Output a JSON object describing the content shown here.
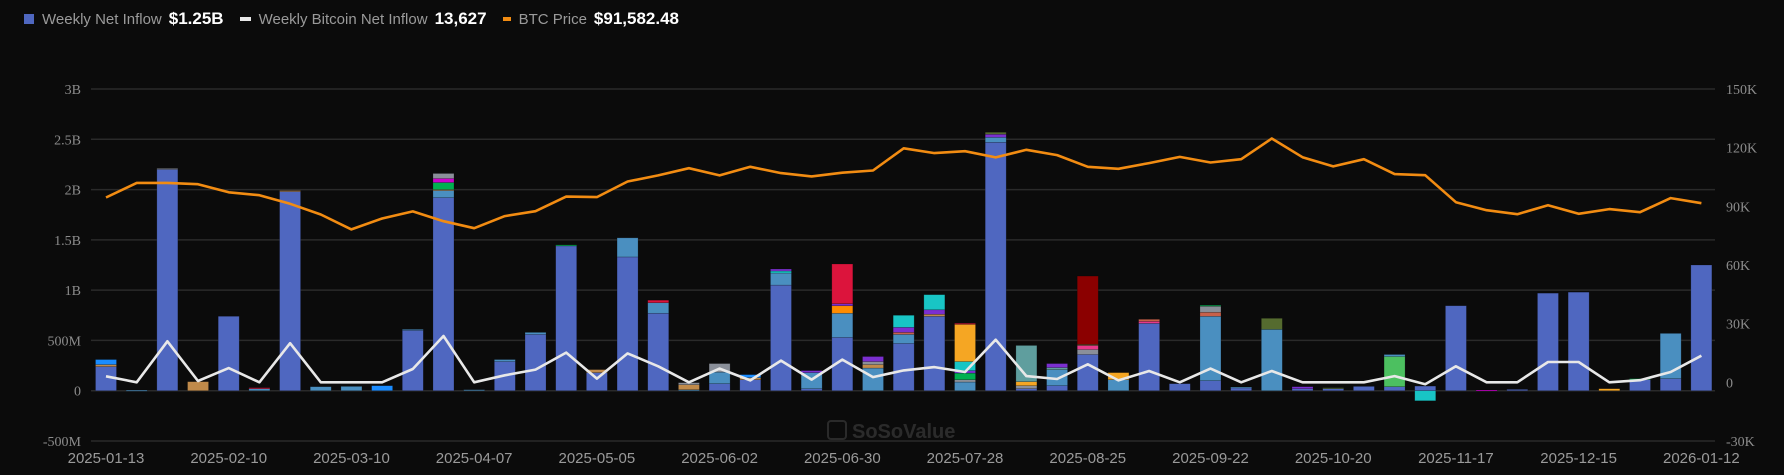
{
  "legend": {
    "net_inflow_label": "Weekly Net Inflow",
    "net_inflow_value": "$1.25B",
    "btc_inflow_label": "Weekly Bitcoin Net Inflow",
    "btc_inflow_value": "13,627",
    "price_label": "BTC Price",
    "price_value": "$91,582.48"
  },
  "watermark": "SoSoValue",
  "colors": {
    "net_inflow": "#4f67c0",
    "btc_inflow": "#e8e8e8",
    "price": "#f28c12",
    "background": "#0b0b0b",
    "grid": "#2a2a2a"
  },
  "chart_data": {
    "type": "bar",
    "grid": true,
    "legend_position": "top-left",
    "left_axis": {
      "ticks": [
        "3B",
        "2.5B",
        "2B",
        "1.5B",
        "1B",
        "500M",
        "0",
        "-500M"
      ],
      "range": [
        -0.5,
        3
      ],
      "unit": "B USD"
    },
    "right_axis": {
      "ticks": [
        "150K",
        "120K",
        "90K",
        "60K",
        "30K",
        "0",
        "-30K"
      ],
      "range": [
        -30000,
        150000
      ]
    },
    "x_tick_labels": [
      "2025-01-13",
      "2025-02-10",
      "2025-03-10",
      "2025-04-07",
      "2025-05-05",
      "2025-06-02",
      "2025-06-30",
      "2025-07-28",
      "2025-08-25",
      "2025-09-22",
      "2025-10-20",
      "2025-11-17",
      "2025-12-15",
      "2026-01-12"
    ],
    "x": [
      "2025-01-13",
      "2025-01-20",
      "2025-01-27",
      "2025-02-03",
      "2025-02-10",
      "2025-02-17",
      "2025-02-24",
      "2025-03-03",
      "2025-03-10",
      "2025-03-17",
      "2025-03-24",
      "2025-03-31",
      "2025-04-07",
      "2025-04-14",
      "2025-04-21",
      "2025-04-28",
      "2025-05-05",
      "2025-05-12",
      "2025-05-19",
      "2025-05-26",
      "2025-06-02",
      "2025-06-09",
      "2025-06-16",
      "2025-06-23",
      "2025-06-30",
      "2025-07-07",
      "2025-07-14",
      "2025-07-21",
      "2025-07-28",
      "2025-08-04",
      "2025-08-11",
      "2025-08-18",
      "2025-08-25",
      "2025-09-01",
      "2025-09-08",
      "2025-09-15",
      "2025-09-22",
      "2025-09-29",
      "2025-10-06",
      "2025-10-13",
      "2025-10-20",
      "2025-10-27",
      "2025-11-03",
      "2025-11-10",
      "2025-11-17",
      "2025-11-24",
      "2025-12-01",
      "2025-12-08",
      "2025-12-15",
      "2025-12-22",
      "2025-12-29",
      "2026-01-05",
      "2026-01-12"
    ],
    "segment_palette": {
      "main": "#4f67c0",
      "light": "#4a8fc0",
      "bright": "#1a8cff",
      "tan": "#c08a4a",
      "red": "#dc143c",
      "darkred": "#8b0000",
      "orange": "#ff8c00",
      "purple": "#7b2fd0",
      "cyan": "#18c5c5",
      "gold": "#f5a623",
      "teal": "#5f9e9e",
      "olive": "#556b2f",
      "green": "#00b050",
      "lime": "#4cc060",
      "gray": "#8a8f99",
      "magenta": "#cc00cc",
      "pink": "#e8388a",
      "salmon": "#c8604a"
    },
    "series": [
      {
        "name": "Weekly Net Inflow",
        "axis": "left",
        "type": "stacked-bar",
        "values": [
          0.31,
          0.005,
          2.21,
          0.09,
          0.74,
          0.03,
          1.99,
          0.04,
          0.043,
          0.05,
          0.61,
          2.16,
          0.01,
          0.31,
          0.58,
          1.45,
          0.21,
          1.52,
          0.9,
          0.08,
          0.27,
          0.16,
          1.21,
          0.2,
          1.26,
          0.34,
          0.75,
          0.955,
          0.67,
          2.57,
          0.45,
          0.27,
          1.14,
          0.18,
          0.71,
          0.07,
          0.85,
          0.036,
          0.72,
          0.04,
          0.03,
          0.043,
          0.36,
          -0.054,
          0.845,
          0.007,
          0.013,
          0.97,
          0.98,
          0.02,
          0.12,
          0.57,
          1.25
        ],
        "segments": [
          [
            [
              0.24,
              "main"
            ],
            [
              0.02,
              "tan"
            ],
            [
              0.05,
              "bright"
            ]
          ],
          [
            [
              0.005,
              "light"
            ]
          ],
          [
            [
              2.2,
              "main"
            ],
            [
              0.01,
              "gray"
            ]
          ],
          [
            [
              0.09,
              "tan"
            ]
          ],
          [
            [
              0.74,
              "main"
            ]
          ],
          [
            [
              0.02,
              "light"
            ],
            [
              0.01,
              "red"
            ]
          ],
          [
            [
              1.98,
              "main"
            ],
            [
              0.01,
              "tan"
            ]
          ],
          [
            [
              0.04,
              "light"
            ]
          ],
          [
            [
              0.043,
              "light"
            ]
          ],
          [
            [
              0.05,
              "bright"
            ]
          ],
          [
            [
              0.6,
              "main"
            ],
            [
              0.01,
              "light"
            ]
          ],
          [
            [
              1.92,
              "main"
            ],
            [
              0.07,
              "light"
            ],
            [
              0.01,
              "tan"
            ],
            [
              0.07,
              "green"
            ],
            [
              0.04,
              "magenta"
            ],
            [
              0.05,
              "gray"
            ]
          ],
          [
            [
              0.01,
              "light"
            ]
          ],
          [
            [
              0.29,
              "main"
            ],
            [
              0.02,
              "light"
            ]
          ],
          [
            [
              0.56,
              "main"
            ],
            [
              0.02,
              "light"
            ]
          ],
          [
            [
              1.44,
              "main"
            ],
            [
              0.01,
              "green"
            ]
          ],
          [
            [
              0.18,
              "main"
            ],
            [
              0.03,
              "tan"
            ]
          ],
          [
            [
              1.33,
              "main"
            ],
            [
              0.19,
              "light"
            ]
          ],
          [
            [
              0.77,
              "main"
            ],
            [
              0.105,
              "light"
            ],
            [
              0.025,
              "red"
            ]
          ],
          [
            [
              0.01,
              "light"
            ],
            [
              0.05,
              "tan"
            ],
            [
              0.02,
              "gray"
            ]
          ],
          [
            [
              0.07,
              "main"
            ],
            [
              0.115,
              "light"
            ],
            [
              0.085,
              "gray"
            ]
          ],
          [
            [
              0.11,
              "main"
            ],
            [
              0.02,
              "tan"
            ],
            [
              0.03,
              "bright"
            ]
          ],
          [
            [
              1.05,
              "main"
            ],
            [
              0.12,
              "light"
            ],
            [
              0.02,
              "cyan"
            ],
            [
              0.02,
              "purple"
            ]
          ],
          [
            [
              0.02,
              "main"
            ],
            [
              0.16,
              "light"
            ],
            [
              0.02,
              "purple"
            ]
          ],
          [
            [
              0.53,
              "main"
            ],
            [
              0.24,
              "light"
            ],
            [
              0.075,
              "orange"
            ],
            [
              0.02,
              "purple"
            ],
            [
              0.395,
              "red"
            ]
          ],
          [
            [
              0.225,
              "light"
            ],
            [
              0.035,
              "tan"
            ],
            [
              0.03,
              "gray"
            ],
            [
              0.05,
              "purple"
            ]
          ],
          [
            [
              0.47,
              "main"
            ],
            [
              0.09,
              "light"
            ],
            [
              0.02,
              "salmon"
            ],
            [
              0.05,
              "purple"
            ],
            [
              0.12,
              "cyan"
            ]
          ],
          [
            [
              0.74,
              "main"
            ],
            [
              0.02,
              "tan"
            ],
            [
              0.045,
              "purple"
            ],
            [
              0.15,
              "cyan"
            ]
          ],
          [
            [
              0.086,
              "light"
            ],
            [
              0.024,
              "gray"
            ],
            [
              0.065,
              "green"
            ],
            [
              0.025,
              "purple"
            ],
            [
              0.09,
              "cyan"
            ],
            [
              0.37,
              "gold"
            ],
            [
              0.01,
              "red"
            ]
          ],
          [
            [
              2.47,
              "main"
            ],
            [
              0.05,
              "light"
            ],
            [
              0.03,
              "purple"
            ],
            [
              0.02,
              "olive"
            ]
          ],
          [
            [
              0.02,
              "main"
            ],
            [
              0.03,
              "gray"
            ],
            [
              0.04,
              "gold"
            ],
            [
              0.36,
              "teal"
            ]
          ],
          [
            [
              0.05,
              "main"
            ],
            [
              0.16,
              "light"
            ],
            [
              0.02,
              "teal"
            ],
            [
              0.04,
              "purple"
            ]
          ],
          [
            [
              0.36,
              "main"
            ],
            [
              0.05,
              "gray"
            ],
            [
              0.04,
              "pink"
            ],
            [
              0.01,
              "olive"
            ],
            [
              0.68,
              "darkred"
            ]
          ],
          [
            [
              0.11,
              "light"
            ],
            [
              0.07,
              "gold"
            ]
          ],
          [
            [
              0.67,
              "main"
            ],
            [
              0.02,
              "pink"
            ],
            [
              0.02,
              "salmon"
            ]
          ],
          [
            [
              0.07,
              "main"
            ]
          ],
          [
            [
              0.1,
              "main"
            ],
            [
              0.64,
              "light"
            ],
            [
              0.04,
              "salmon"
            ],
            [
              0.06,
              "gray"
            ],
            [
              0.01,
              "green"
            ]
          ],
          [
            [
              0.03,
              "main"
            ],
            [
              0.006,
              "light"
            ]
          ],
          [
            [
              0.61,
              "light"
            ],
            [
              0.11,
              "olive"
            ]
          ],
          [
            [
              0.02,
              "main"
            ],
            [
              0.02,
              "purple"
            ]
          ],
          [
            [
              0.02,
              "main"
            ],
            [
              0.01,
              "olive"
            ]
          ],
          [
            [
              0.043,
              "main"
            ]
          ],
          [
            [
              0.04,
              "main"
            ],
            [
              0.3,
              "lime"
            ],
            [
              0.02,
              "light"
            ]
          ],
          [
            [
              0.046,
              "main"
            ],
            [
              -0.1,
              "cyan"
            ]
          ],
          [
            [
              0.845,
              "main"
            ]
          ],
          [
            [
              0.007,
              "magenta"
            ]
          ],
          [
            [
              0.013,
              "main"
            ]
          ],
          [
            [
              0.97,
              "main"
            ]
          ],
          [
            [
              0.98,
              "main"
            ]
          ],
          [
            [
              0.02,
              "gold"
            ]
          ],
          [
            [
              0.11,
              "main"
            ],
            [
              0.01,
              "green"
            ]
          ],
          [
            [
              0.12,
              "main"
            ],
            [
              0.45,
              "light"
            ]
          ],
          [
            [
              1.25,
              "main"
            ]
          ]
        ]
      },
      {
        "name": "Weekly Bitcoin Net Inflow",
        "axis": "right",
        "type": "line",
        "values": [
          3070,
          0,
          21000,
          700,
          7300,
          0,
          20000,
          0,
          0,
          0,
          6800,
          23700,
          0,
          3600,
          6500,
          15200,
          1900,
          14800,
          8200,
          0,
          7000,
          1000,
          11100,
          1400,
          11600,
          2700,
          6100,
          7800,
          5300,
          21800,
          3200,
          1700,
          9200,
          1000,
          5800,
          0,
          7000,
          0,
          5800,
          0,
          0,
          0,
          3200,
          -1000,
          8200,
          0,
          0,
          10400,
          10400,
          0,
          1100,
          5300,
          13627
        ]
      },
      {
        "name": "BTC Price",
        "axis": "right",
        "type": "line",
        "values": [
          94500,
          102000,
          102000,
          101300,
          97200,
          95700,
          91300,
          85800,
          78200,
          83800,
          87400,
          82400,
          78800,
          85000,
          87500,
          95000,
          94700,
          102700,
          105800,
          109500,
          105800,
          110200,
          107000,
          105300,
          107200,
          108300,
          119700,
          117200,
          118200,
          115000,
          118900,
          116200,
          110200,
          109200,
          112100,
          115300,
          112400,
          114100,
          124700,
          115100,
          110400,
          114100,
          106500,
          105900,
          92100,
          88000,
          86000,
          90600,
          86200,
          88600,
          87000,
          94200,
          91582.48
        ]
      }
    ]
  }
}
